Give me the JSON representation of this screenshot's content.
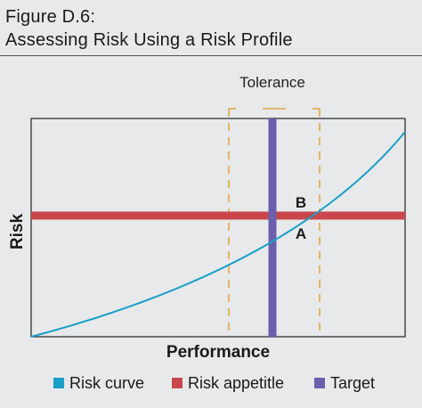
{
  "figure": {
    "label": "Figure D.6:",
    "title": "Assessing Risk Using a Risk Profile"
  },
  "diagram": {
    "tolerance_label": "Tolerance",
    "x_axis_label": "Performance",
    "y_axis_label": "Risk",
    "point_b": "B",
    "point_a": "A"
  },
  "legend": [
    {
      "label": "Risk curve",
      "color": "#1aa0c8"
    },
    {
      "label": "Risk appetitle",
      "color": "#c9474a"
    },
    {
      "label": "Target",
      "color": "#6b5fae"
    }
  ],
  "colors": {
    "curve": "#1aa0c8",
    "appetite": "#c9474a",
    "target": "#6b5fae",
    "tolerance": "#e0a84a",
    "axes": "#222222",
    "plot_bg": "#e8e9ea"
  }
}
